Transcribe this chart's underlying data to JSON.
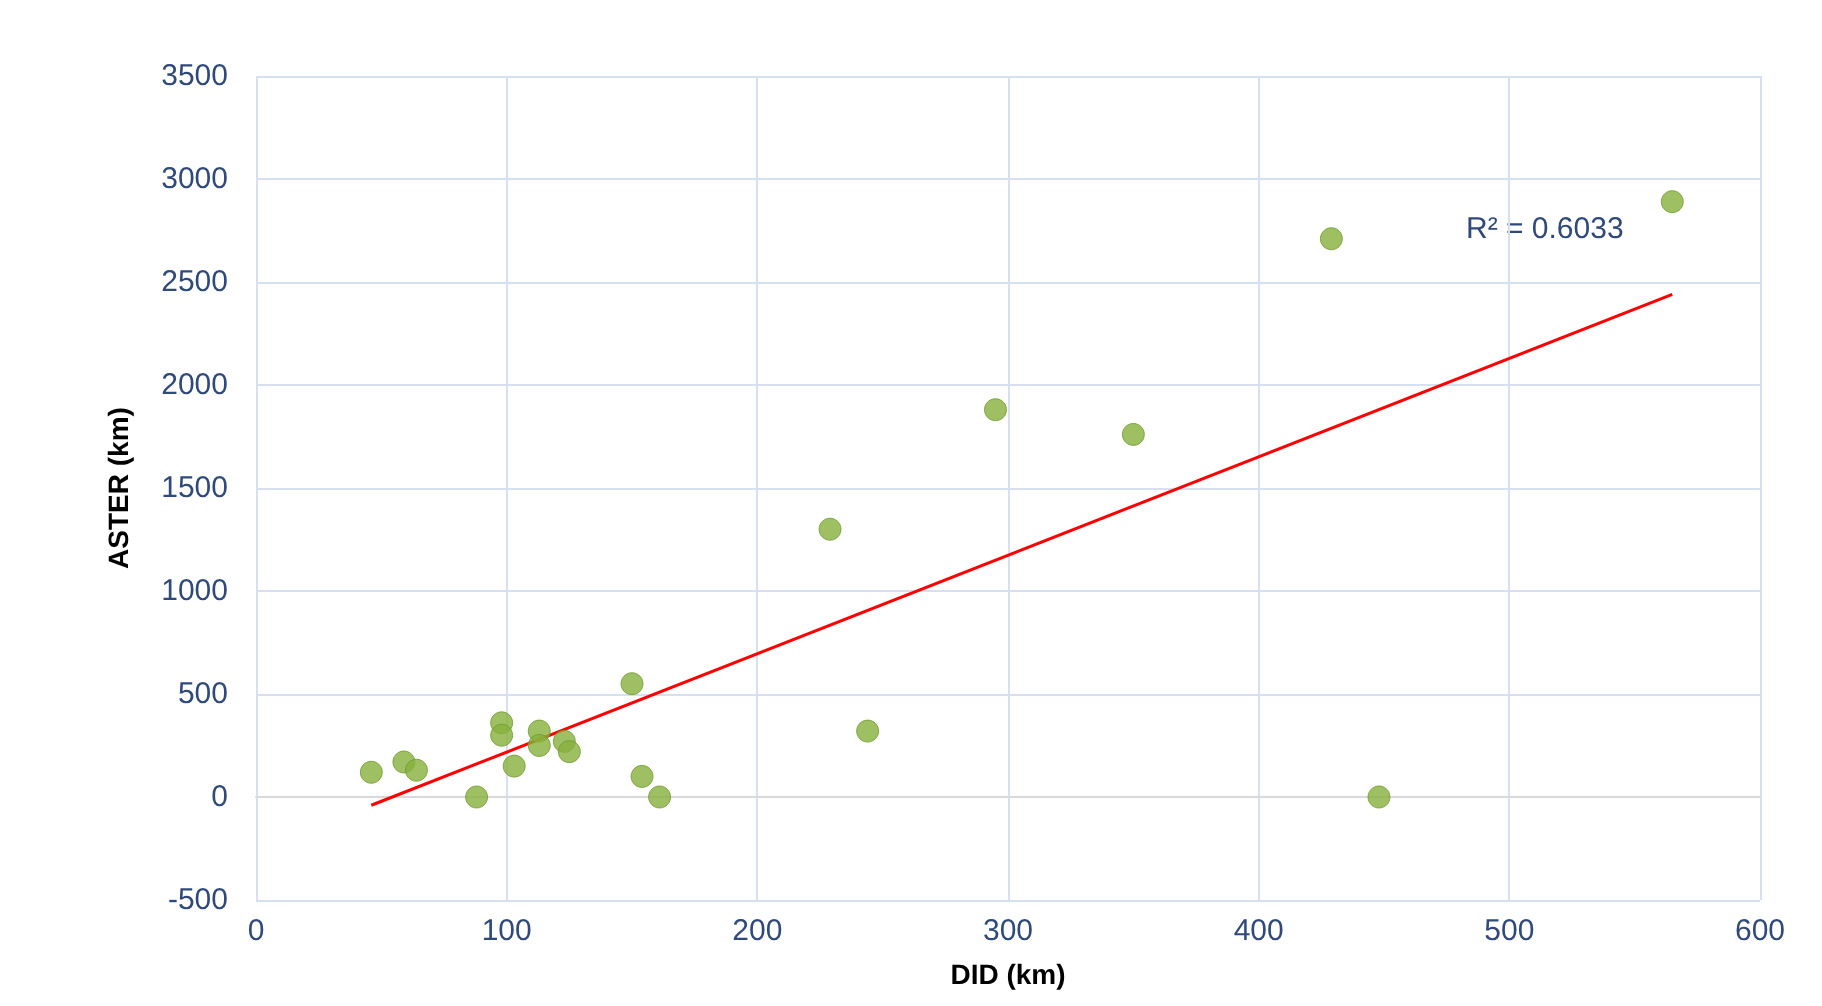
{
  "chart_data": {
    "type": "scatter",
    "xlabel": "DID (km)",
    "ylabel": "ASTER (km)",
    "xlim": [
      0,
      600
    ],
    "xticks": [
      0,
      100,
      200,
      300,
      400,
      500,
      600
    ],
    "ylim": [
      -500,
      3500
    ],
    "yticks": [
      -500,
      0,
      500,
      1000,
      1500,
      2000,
      2500,
      3000,
      3500
    ],
    "grid": true,
    "marker": "circle",
    "series": [
      {
        "color": "#86b03c",
        "x": [
          46,
          59,
          64,
          88,
          98,
          98,
          103,
          113,
          113,
          123,
          125,
          150,
          154,
          161,
          229,
          244,
          295,
          350,
          429,
          448,
          565
        ],
        "values": [
          120,
          170,
          130,
          0,
          360,
          300,
          150,
          320,
          250,
          270,
          220,
          550,
          100,
          0,
          1300,
          320,
          1880,
          1760,
          2710,
          0,
          2890
        ]
      },
      {
        "type": "line",
        "color": "#ff0000",
        "marker": "none",
        "x": [
          46,
          565
        ],
        "values": [
          -40,
          2440
        ]
      }
    ],
    "annotations": [
      "R² = 0.6033"
    ]
  }
}
